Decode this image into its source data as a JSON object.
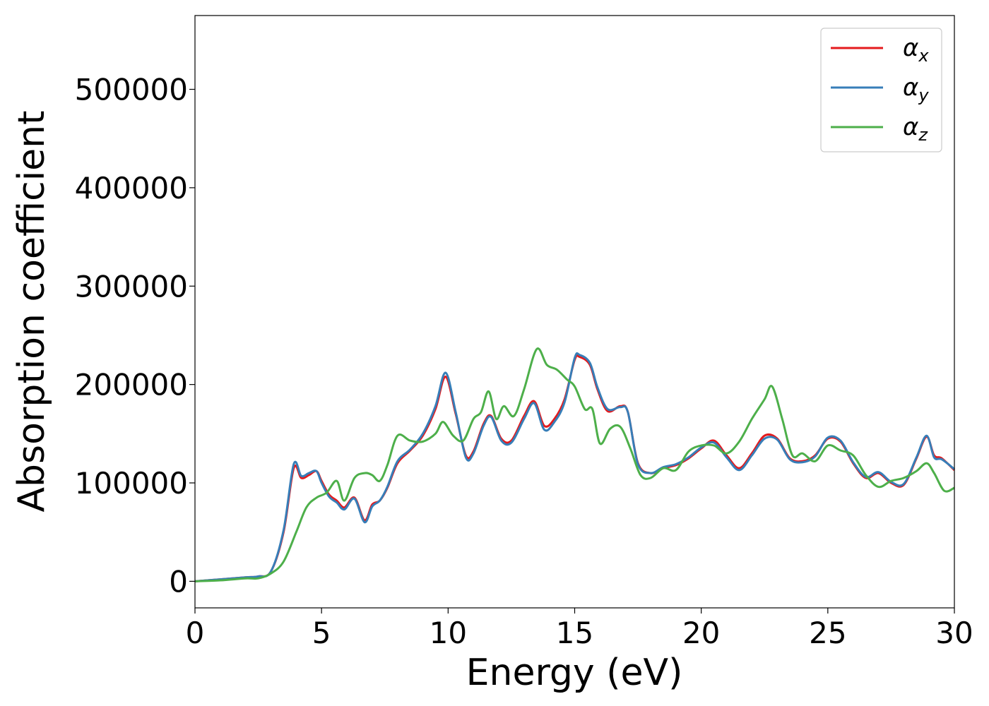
{
  "chart_data": {
    "type": "line",
    "xlabel": "Energy (eV)",
    "ylabel": "Absorption coefficient",
    "xlim": [
      0,
      30
    ],
    "ylim": [
      -27000,
      575000
    ],
    "xticks": [
      0,
      5,
      10,
      15,
      20,
      25,
      30
    ],
    "yticks": [
      0,
      100000,
      200000,
      300000,
      400000,
      500000
    ],
    "grid": false,
    "legend_position": "top-right",
    "series": [
      {
        "name": "αx",
        "symbol": "α",
        "subscript": "x",
        "color": "#e41a1c",
        "x": [
          0,
          1,
          2,
          2.5,
          3,
          3.5,
          3.9,
          4.2,
          4.5,
          4.8,
          5,
          5.3,
          5.6,
          5.9,
          6.3,
          6.7,
          7,
          7.3,
          7.6,
          8,
          8.5,
          9,
          9.5,
          9.9,
          10.3,
          10.7,
          11,
          11.4,
          11.7,
          12.1,
          12.5,
          13,
          13.4,
          13.8,
          14.2,
          14.6,
          15,
          15.2,
          15.6,
          15.9,
          16.3,
          16.8,
          17.1,
          17.5,
          18,
          18.5,
          19,
          19.5,
          20,
          20.5,
          21,
          21.5,
          22,
          22.5,
          23,
          23.5,
          24,
          24.5,
          25,
          25.5,
          26,
          26.5,
          27,
          27.5,
          28,
          28.5,
          28.9,
          29.2,
          29.5,
          30
        ],
        "values": [
          0,
          2000,
          4000,
          5000,
          10000,
          50000,
          115000,
          105000,
          108000,
          112000,
          102000,
          88000,
          82000,
          75000,
          85000,
          62000,
          78000,
          82000,
          95000,
          120000,
          133000,
          148000,
          175000,
          208000,
          170000,
          128000,
          132000,
          160000,
          168000,
          145000,
          143000,
          168000,
          183000,
          158000,
          165000,
          185000,
          225000,
          228000,
          220000,
          195000,
          173000,
          178000,
          172000,
          120000,
          110000,
          115000,
          118000,
          125000,
          135000,
          143000,
          128000,
          115000,
          130000,
          148000,
          145000,
          125000,
          122000,
          128000,
          145000,
          142000,
          120000,
          105000,
          110000,
          100000,
          98000,
          125000,
          147000,
          128000,
          125000,
          113000
        ]
      },
      {
        "name": "αy",
        "symbol": "α",
        "subscript": "y",
        "color": "#377eb8",
        "x": [
          0,
          1,
          2,
          2.5,
          3,
          3.5,
          3.9,
          4.2,
          4.5,
          4.8,
          5,
          5.3,
          5.6,
          5.9,
          6.3,
          6.7,
          7,
          7.3,
          7.6,
          8,
          8.5,
          9,
          9.5,
          9.9,
          10.3,
          10.7,
          11,
          11.4,
          11.7,
          12.1,
          12.5,
          13,
          13.4,
          13.8,
          14.2,
          14.6,
          15,
          15.2,
          15.6,
          15.9,
          16.3,
          16.8,
          17.1,
          17.5,
          18,
          18.5,
          19,
          19.5,
          20,
          20.5,
          21,
          21.5,
          22,
          22.5,
          23,
          23.5,
          24,
          24.5,
          25,
          25.5,
          26,
          26.5,
          27,
          27.5,
          28,
          28.5,
          28.9,
          29.2,
          29.5,
          30
        ],
        "values": [
          0,
          2000,
          4000,
          5000,
          10000,
          52000,
          119000,
          107000,
          110000,
          112000,
          100000,
          86000,
          80000,
          73000,
          84000,
          60000,
          76000,
          82000,
          96000,
          122000,
          134000,
          150000,
          178000,
          212000,
          172000,
          126000,
          130000,
          158000,
          167000,
          143000,
          141000,
          165000,
          181000,
          154000,
          162000,
          182000,
          227000,
          230000,
          222000,
          197000,
          175000,
          177000,
          172000,
          119000,
          110000,
          116000,
          119000,
          126000,
          136000,
          141000,
          126000,
          113000,
          128000,
          145000,
          144000,
          124000,
          121000,
          127000,
          146000,
          143000,
          121000,
          106000,
          111000,
          101000,
          99000,
          126000,
          148000,
          126000,
          124000,
          114000
        ]
      },
      {
        "name": "αz",
        "symbol": "α",
        "subscript": "z",
        "color": "#4daf4a",
        "x": [
          0,
          1,
          2,
          2.5,
          3,
          3.5,
          4,
          4.4,
          4.8,
          5.2,
          5.6,
          5.9,
          6.3,
          6.7,
          7,
          7.3,
          7.6,
          8,
          8.5,
          9,
          9.5,
          9.8,
          10.2,
          10.6,
          11,
          11.3,
          11.6,
          11.9,
          12.2,
          12.6,
          13,
          13.5,
          13.9,
          14.3,
          14.7,
          15,
          15.4,
          15.7,
          16,
          16.4,
          16.8,
          17.2,
          17.6,
          18,
          18.5,
          19,
          19.5,
          20,
          20.5,
          21,
          21.5,
          22,
          22.5,
          22.8,
          23.2,
          23.6,
          24,
          24.5,
          25,
          25.5,
          26,
          26.5,
          27,
          27.5,
          28,
          28.5,
          28.9,
          29.2,
          29.6,
          30
        ],
        "values": [
          0,
          1000,
          3000,
          3000,
          8000,
          20000,
          50000,
          75000,
          85000,
          90000,
          102000,
          82000,
          105000,
          110000,
          108000,
          102000,
          118000,
          148000,
          143000,
          142000,
          150000,
          162000,
          148000,
          143000,
          165000,
          172000,
          193000,
          165000,
          178000,
          168000,
          195000,
          236000,
          220000,
          215000,
          205000,
          198000,
          175000,
          175000,
          140000,
          155000,
          157000,
          135000,
          108000,
          105000,
          115000,
          113000,
          132000,
          138000,
          138000,
          130000,
          142000,
          165000,
          185000,
          198000,
          165000,
          128000,
          130000,
          122000,
          138000,
          133000,
          128000,
          108000,
          96000,
          102000,
          105000,
          112000,
          120000,
          110000,
          92000,
          95000
        ]
      }
    ]
  }
}
